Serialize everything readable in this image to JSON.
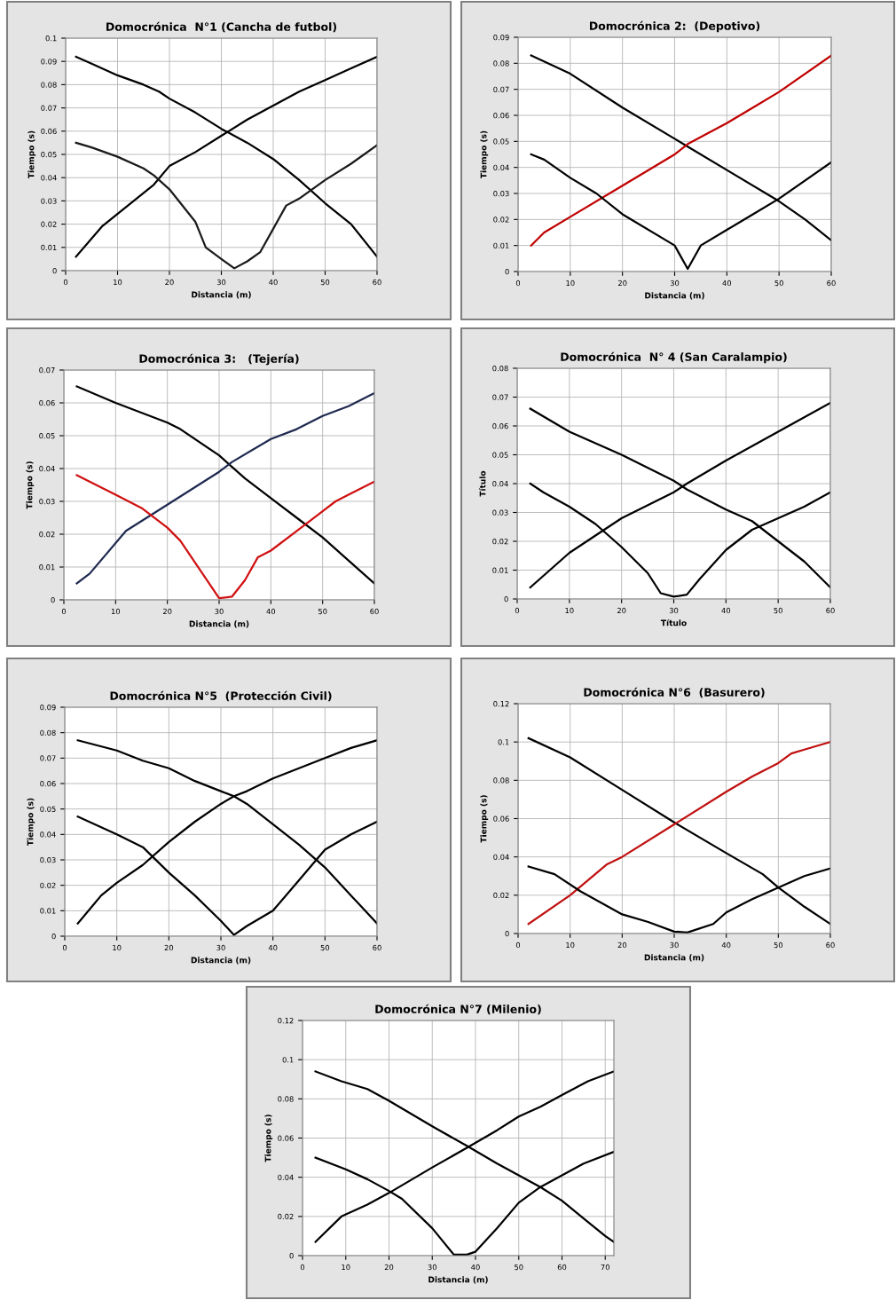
{
  "chart_data": [
    {
      "type": "line",
      "title": "Domocrónica  N°1 (Cancha de futbol)",
      "xlabel": "Distancia (m)",
      "ylabel": "Tiempo (s)",
      "xlim": [
        0,
        60
      ],
      "ylim": [
        0,
        0.1
      ],
      "xticks": [
        0,
        10,
        20,
        30,
        40,
        50,
        60
      ],
      "yticks": [
        0,
        0.01,
        0.02,
        0.03,
        0.04,
        0.05,
        0.06,
        0.07,
        0.08,
        0.09,
        0.1
      ],
      "grid": true,
      "series": [
        {
          "color": "#000000",
          "x": [
            2,
            5,
            10,
            15,
            18,
            20,
            25,
            30,
            35,
            40,
            45,
            50,
            55,
            60
          ],
          "values": [
            0.092,
            0.089,
            0.084,
            0.08,
            0.077,
            0.074,
            0.068,
            0.061,
            0.055,
            0.048,
            0.039,
            0.029,
            0.02,
            0.006
          ]
        },
        {
          "color": "#000000",
          "x": [
            2,
            7,
            12,
            17,
            20,
            25,
            30,
            35,
            40,
            45,
            50,
            55,
            60
          ],
          "values": [
            0.006,
            0.019,
            0.028,
            0.037,
            0.045,
            0.051,
            0.058,
            0.065,
            0.071,
            0.077,
            0.082,
            0.087,
            0.092
          ]
        },
        {
          "color": "#1a1a1a",
          "x": [
            2,
            5,
            10,
            15,
            17,
            20,
            25,
            27,
            30,
            32.5,
            35,
            37.5,
            40,
            42.5,
            45,
            50,
            55,
            60
          ],
          "values": [
            0.055,
            0.053,
            0.049,
            0.044,
            0.041,
            0.035,
            0.021,
            0.01,
            0.005,
            0.001,
            0.004,
            0.008,
            0.018,
            0.028,
            0.031,
            0.039,
            0.046,
            0.054
          ]
        }
      ]
    },
    {
      "type": "line",
      "title": "Domocrónica 2:  (Depotivo)",
      "xlabel": "Distancia (m)",
      "ylabel": "Tiempo (s)",
      "xlim": [
        0,
        60
      ],
      "ylim": [
        0,
        0.09
      ],
      "xticks": [
        0,
        10,
        20,
        30,
        40,
        50,
        60
      ],
      "yticks": [
        0,
        0.01,
        0.02,
        0.03,
        0.04,
        0.05,
        0.06,
        0.07,
        0.08,
        0.09
      ],
      "grid": true,
      "series": [
        {
          "color": "#000000",
          "x": [
            2.5,
            10,
            20,
            30,
            32.5,
            40,
            50,
            55,
            60
          ],
          "values": [
            0.083,
            0.076,
            0.063,
            0.051,
            0.048,
            0.039,
            0.027,
            0.02,
            0.012
          ]
        },
        {
          "color": "#c00000",
          "x": [
            2.5,
            5,
            10,
            20,
            30,
            32.5,
            40,
            45,
            50,
            60
          ],
          "values": [
            0.01,
            0.015,
            0.021,
            0.033,
            0.045,
            0.049,
            0.057,
            0.063,
            0.069,
            0.083
          ]
        },
        {
          "color": "#000000",
          "x": [
            2.5,
            5,
            10,
            15,
            20,
            30,
            32.5,
            35,
            40,
            45,
            50,
            60
          ],
          "values": [
            0.045,
            0.043,
            0.036,
            0.03,
            0.022,
            0.01,
            0.001,
            0.01,
            0.016,
            0.022,
            0.028,
            0.042
          ]
        }
      ]
    },
    {
      "type": "line",
      "title": "Domocrónica 3:   (Tejería)",
      "xlabel": "Distancia (m)",
      "ylabel": "Tiempo (s)",
      "xlim": [
        0,
        60
      ],
      "ylim": [
        0,
        0.07
      ],
      "xticks": [
        0,
        10,
        20,
        30,
        40,
        50,
        60
      ],
      "yticks": [
        0,
        0.01,
        0.02,
        0.03,
        0.04,
        0.05,
        0.06,
        0.07
      ],
      "grid": true,
      "series": [
        {
          "color": "#000000",
          "x": [
            2.5,
            10,
            20,
            22.5,
            30,
            35,
            40,
            45,
            50,
            55,
            60
          ],
          "values": [
            0.065,
            0.06,
            0.054,
            0.052,
            0.044,
            0.037,
            0.031,
            0.025,
            0.019,
            0.012,
            0.005
          ]
        },
        {
          "color": "#1f2a50",
          "x": [
            2.5,
            5,
            12,
            20,
            30,
            32.5,
            40,
            45,
            50,
            55,
            60
          ],
          "values": [
            0.005,
            0.008,
            0.021,
            0.029,
            0.039,
            0.042,
            0.049,
            0.052,
            0.056,
            0.059,
            0.063
          ]
        },
        {
          "color": "#d01010",
          "x": [
            2.5,
            10,
            15,
            20,
            22.5,
            30,
            32.5,
            35,
            37.5,
            40,
            45,
            50,
            52.5,
            55,
            60
          ],
          "values": [
            0.038,
            0.032,
            0.028,
            0.022,
            0.018,
            0.0005,
            0.001,
            0.006,
            0.013,
            0.015,
            0.021,
            0.027,
            0.03,
            0.032,
            0.036
          ]
        }
      ]
    },
    {
      "type": "line",
      "title": "Domocrónica  N° 4 (San Caralampio)",
      "xlabel": "Título",
      "ylabel": "Título",
      "xlim": [
        0,
        60
      ],
      "ylim": [
        0,
        0.08
      ],
      "xticks": [
        0,
        10,
        20,
        30,
        40,
        50,
        60
      ],
      "yticks": [
        0,
        0.01,
        0.02,
        0.03,
        0.04,
        0.05,
        0.06,
        0.07,
        0.08
      ],
      "grid": true,
      "series": [
        {
          "color": "#000000",
          "x": [
            2.5,
            10,
            20,
            30,
            32.5,
            40,
            45,
            50,
            55,
            60
          ],
          "values": [
            0.066,
            0.058,
            0.05,
            0.041,
            0.038,
            0.031,
            0.027,
            0.02,
            0.013,
            0.004
          ]
        },
        {
          "color": "#000000",
          "x": [
            2.5,
            10,
            20,
            30,
            32.5,
            40,
            45,
            50,
            55,
            60
          ],
          "values": [
            0.004,
            0.016,
            0.028,
            0.037,
            0.04,
            0.048,
            0.053,
            0.058,
            0.063,
            0.068
          ]
        },
        {
          "color": "#000000",
          "x": [
            2.5,
            5,
            10,
            15,
            20,
            25,
            27.5,
            30,
            32.5,
            35,
            40,
            45,
            50,
            55,
            60
          ],
          "values": [
            0.04,
            0.037,
            0.032,
            0.026,
            0.018,
            0.009,
            0.002,
            0.0008,
            0.0015,
            0.007,
            0.017,
            0.024,
            0.028,
            0.032,
            0.037
          ]
        }
      ]
    },
    {
      "type": "line",
      "title": "Domocrónica N°5  (Protección Civil)",
      "xlabel": "Distancia (m)",
      "ylabel": "Tiempo (s)",
      "xlim": [
        0,
        60
      ],
      "ylim": [
        0,
        0.09
      ],
      "xticks": [
        0,
        10,
        20,
        30,
        40,
        50,
        60
      ],
      "yticks": [
        0,
        0.01,
        0.02,
        0.03,
        0.04,
        0.05,
        0.06,
        0.07,
        0.08,
        0.09
      ],
      "grid": true,
      "series": [
        {
          "color": "#000000",
          "x": [
            2.5,
            10,
            15,
            20,
            25,
            30,
            32.5,
            35,
            40,
            45,
            50,
            55,
            60
          ],
          "values": [
            0.077,
            0.073,
            0.069,
            0.066,
            0.061,
            0.057,
            0.055,
            0.052,
            0.044,
            0.036,
            0.027,
            0.016,
            0.005
          ]
        },
        {
          "color": "#000000",
          "x": [
            2.5,
            7,
            10,
            15,
            20,
            25,
            30,
            32.5,
            35,
            40,
            45,
            50,
            55,
            60
          ],
          "values": [
            0.005,
            0.016,
            0.021,
            0.028,
            0.037,
            0.045,
            0.052,
            0.055,
            0.057,
            0.062,
            0.066,
            0.07,
            0.074,
            0.077
          ]
        },
        {
          "color": "#000000",
          "x": [
            2.5,
            10,
            15,
            20,
            25,
            30,
            32.5,
            35,
            40,
            45,
            50,
            55,
            60
          ],
          "values": [
            0.047,
            0.04,
            0.035,
            0.025,
            0.016,
            0.006,
            0.0005,
            0.004,
            0.01,
            0.022,
            0.034,
            0.04,
            0.045
          ]
        }
      ]
    },
    {
      "type": "line",
      "title": "Domocrónica N°6  (Basurero)",
      "xlabel": "Distancia (m)",
      "ylabel": "Tiempo (s)",
      "xlim": [
        0,
        60
      ],
      "ylim": [
        0,
        0.12
      ],
      "xticks": [
        0,
        10,
        20,
        30,
        40,
        50,
        60
      ],
      "yticks": [
        0,
        0.02,
        0.04,
        0.06,
        0.08,
        0.1,
        0.12
      ],
      "grid": true,
      "series": [
        {
          "color": "#000000",
          "x": [
            2,
            10,
            20,
            30,
            40,
            47,
            50,
            55,
            60
          ],
          "values": [
            0.102,
            0.092,
            0.075,
            0.058,
            0.042,
            0.031,
            0.024,
            0.014,
            0.005
          ]
        },
        {
          "color": "#c01010",
          "x": [
            2,
            10,
            17,
            20,
            30,
            40,
            45,
            50,
            52.5,
            55,
            60
          ],
          "values": [
            0.005,
            0.02,
            0.036,
            0.04,
            0.057,
            0.074,
            0.082,
            0.089,
            0.094,
            0.096,
            0.1
          ]
        },
        {
          "color": "#000000",
          "x": [
            2,
            7,
            12,
            20,
            25,
            30,
            32.5,
            37.5,
            40,
            45,
            50,
            55,
            60
          ],
          "values": [
            0.035,
            0.031,
            0.022,
            0.01,
            0.006,
            0.001,
            0.0005,
            0.005,
            0.011,
            0.018,
            0.024,
            0.03,
            0.034
          ]
        }
      ]
    },
    {
      "type": "line",
      "title": "Domocrónica N°7 (Milenio)",
      "xlabel": "Distancia (m)",
      "ylabel": "Tiempo (s)",
      "xlim": [
        0,
        72
      ],
      "ylim": [
        0,
        0.12
      ],
      "xticks": [
        0,
        10,
        20,
        30,
        40,
        50,
        60,
        70
      ],
      "yticks": [
        0,
        0.02,
        0.04,
        0.06,
        0.08,
        0.1,
        0.12
      ],
      "grid": true,
      "series": [
        {
          "color": "#000000",
          "x": [
            3,
            9,
            15,
            20,
            30,
            38,
            45,
            50,
            55,
            60,
            65,
            70,
            72
          ],
          "values": [
            0.094,
            0.089,
            0.085,
            0.079,
            0.066,
            0.056,
            0.047,
            0.041,
            0.035,
            0.028,
            0.019,
            0.01,
            0.007
          ]
        },
        {
          "color": "#000000",
          "x": [
            3,
            9,
            15,
            20,
            30,
            38,
            45,
            50,
            55,
            60,
            66,
            72
          ],
          "values": [
            0.007,
            0.02,
            0.026,
            0.032,
            0.045,
            0.055,
            0.064,
            0.071,
            0.076,
            0.082,
            0.089,
            0.094
          ]
        },
        {
          "color": "#000000",
          "x": [
            3,
            10,
            15,
            20,
            23,
            30,
            35,
            38,
            40,
            45,
            50,
            55,
            60,
            65,
            72
          ],
          "values": [
            0.05,
            0.044,
            0.039,
            0.033,
            0.029,
            0.014,
            0.0005,
            0.0005,
            0.002,
            0.014,
            0.027,
            0.035,
            0.041,
            0.047,
            0.053
          ]
        }
      ]
    }
  ]
}
